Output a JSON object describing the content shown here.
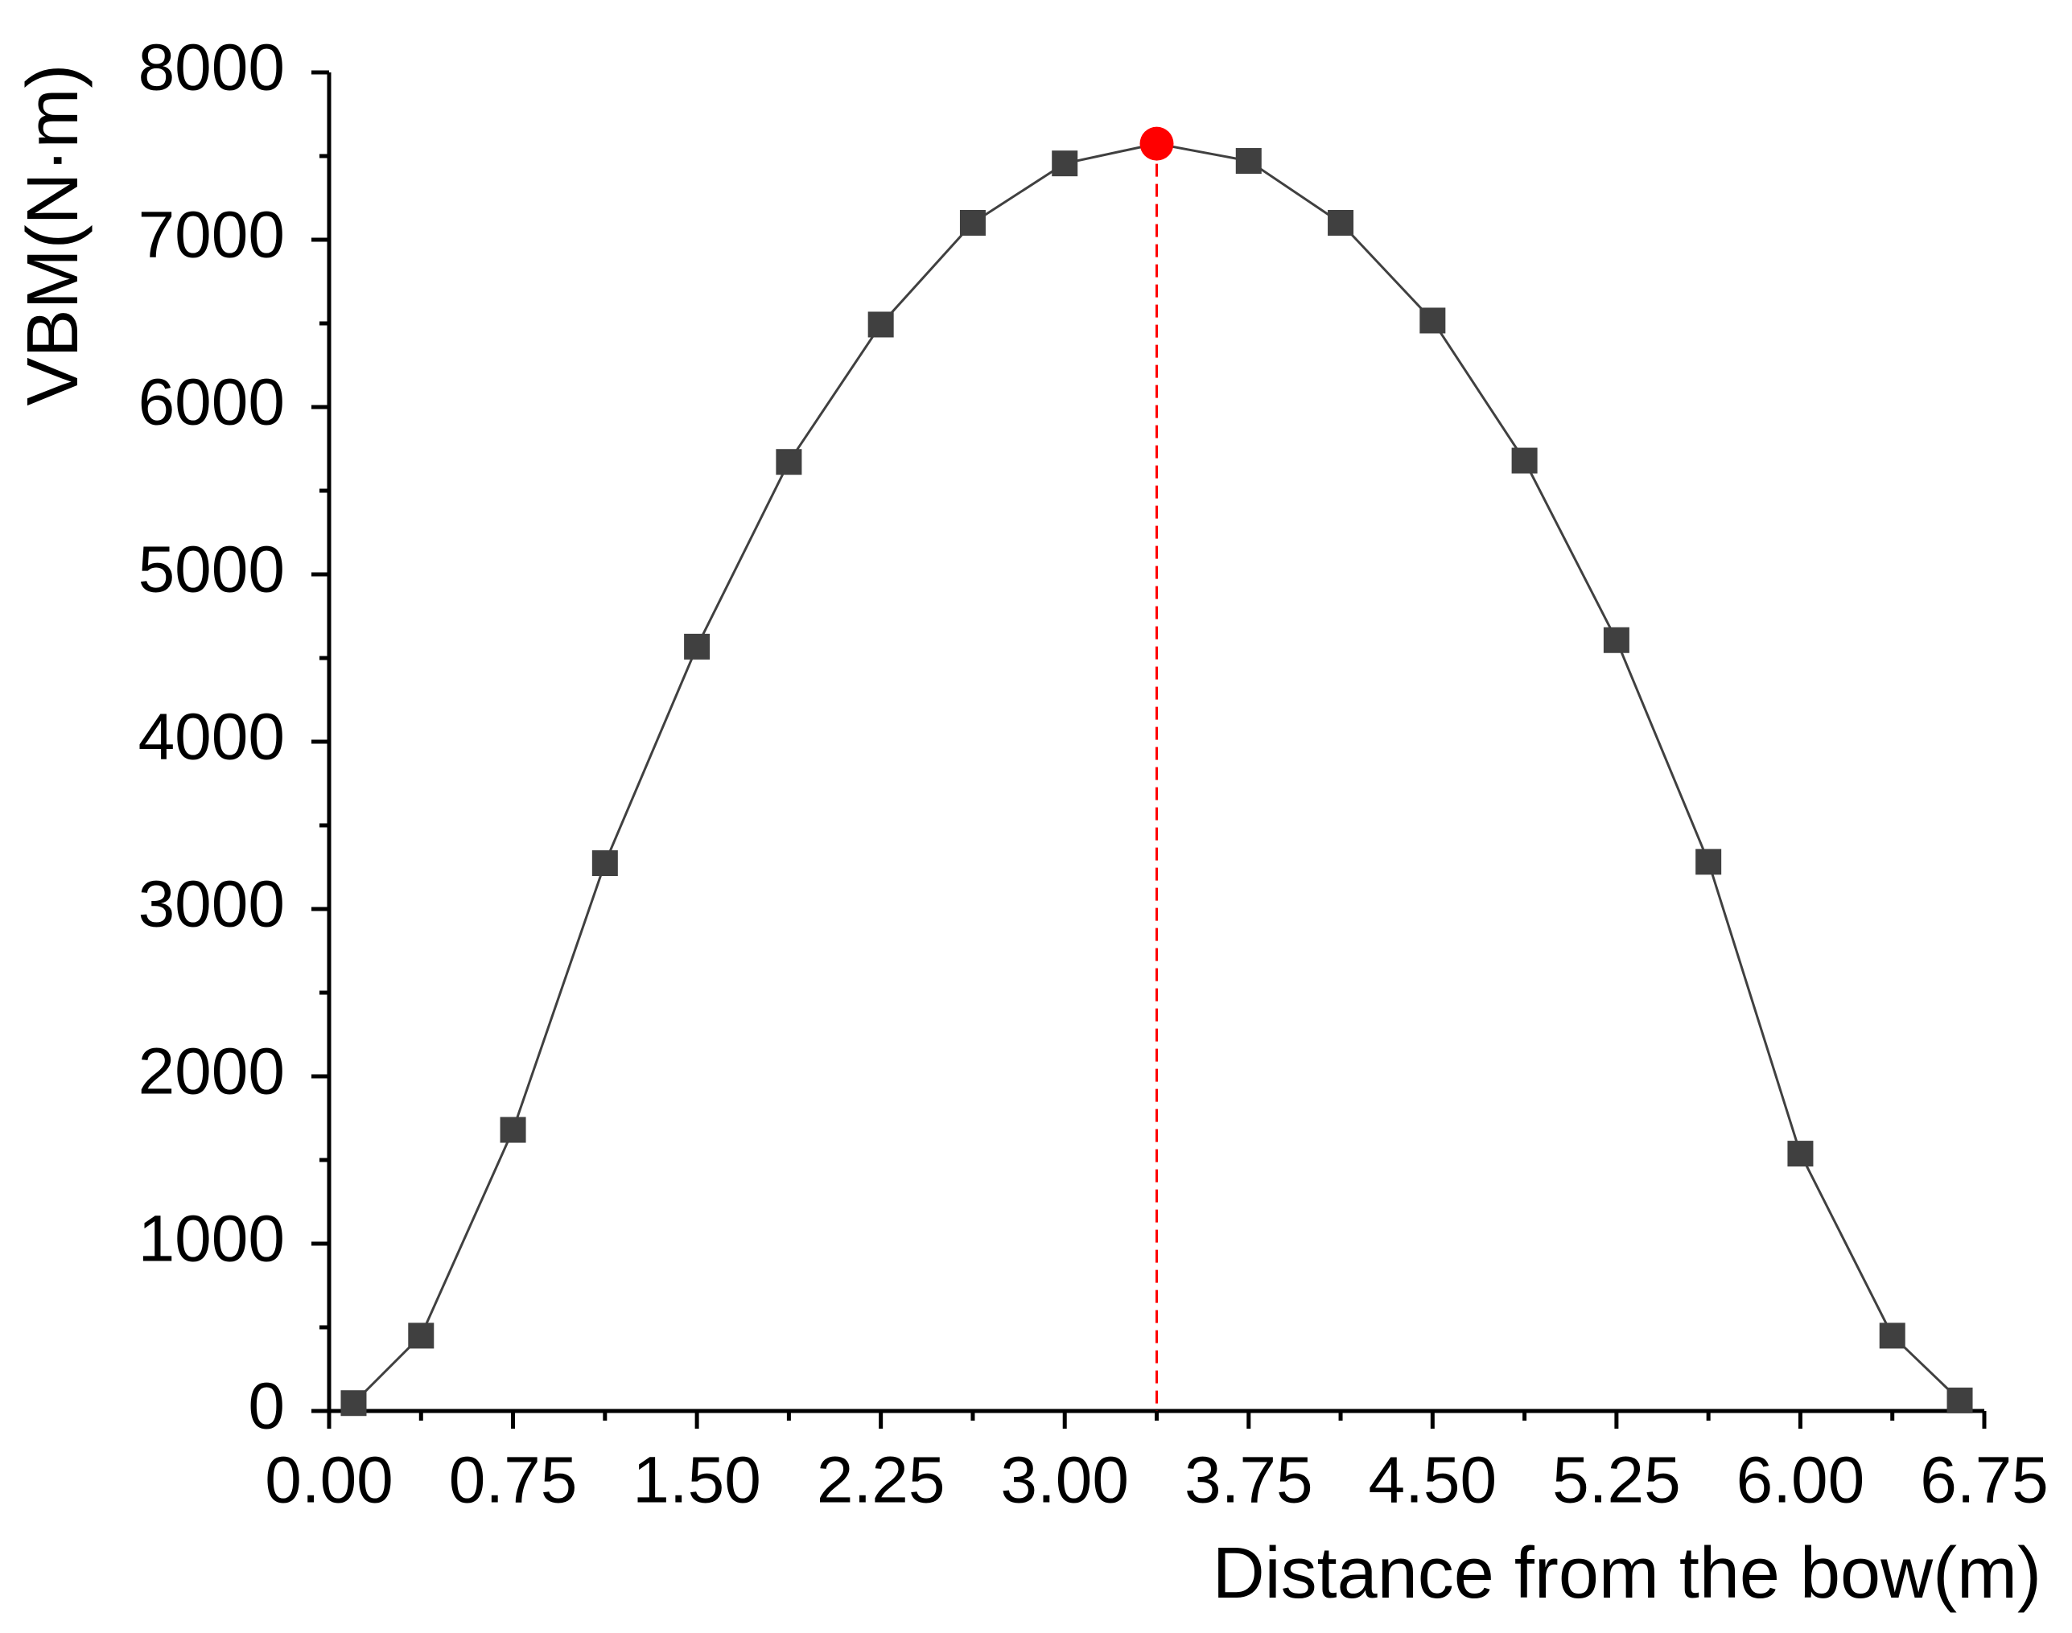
{
  "chart_data": {
    "type": "line",
    "x_label": "Distance from the bow(m)",
    "y_label": "VBM(N·m)",
    "x": [
      0.1,
      0.375,
      0.75,
      1.125,
      1.5,
      1.875,
      2.25,
      2.625,
      3.0,
      3.375,
      3.75,
      4.125,
      4.5,
      4.875,
      5.25,
      5.625,
      6.0,
      6.375,
      6.65
    ],
    "series": [
      {
        "color": "#404040",
        "values": [
          47,
          450,
          1680,
          3274,
          4568,
          5672,
          6493,
          7101,
          7456,
          7574,
          7471,
          7101,
          6517,
          5680,
          4607,
          3282,
          1538,
          450,
          63
        ],
        "point_colors": [
          "#404040",
          "#404040",
          "#404040",
          "#404040",
          "#404040",
          "#404040",
          "#404040",
          "#404040",
          "#404040",
          "#ff0000",
          "#404040",
          "#404040",
          "#404040",
          "#404040",
          "#404040",
          "#404040",
          "#404040",
          "#404040",
          "#404040"
        ]
      }
    ],
    "xlim": [
      0,
      6.75
    ],
    "xticks": [
      {
        "value": 0,
        "label": "0.00"
      },
      0.75,
      {
        "value": 1.5,
        "label": "1.50"
      },
      2.25,
      {
        "value": 3,
        "label": "3.00"
      },
      3.75,
      {
        "value": 4.5,
        "label": "4.50"
      },
      5.25,
      {
        "value": 6,
        "label": "6.00"
      },
      6.75
    ],
    "ylim": [
      0,
      8000
    ],
    "yticks": [
      0,
      1000,
      2000,
      3000,
      4000,
      5000,
      6000,
      7000,
      8000
    ],
    "grid": false
  }
}
